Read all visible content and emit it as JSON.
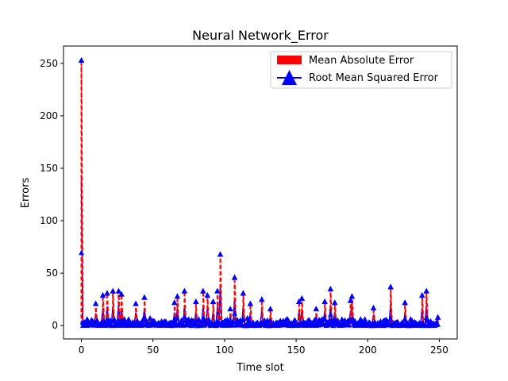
{
  "chart_data": {
    "type": "line",
    "title": "Neural Network_Error",
    "xlabel": "Time slot",
    "ylabel": "Errors",
    "xlim": [
      -12.5,
      262.5
    ],
    "ylim": [
      -12.7,
      266.5
    ],
    "xticks": [
      0,
      50,
      100,
      150,
      200,
      250
    ],
    "yticks": [
      0,
      50,
      100,
      150,
      200,
      250
    ],
    "grid": false,
    "legend_position": "upper-right",
    "series": [
      {
        "name": "Mean Absolute Error",
        "color": "#ff0000",
        "style": "dashed",
        "spikes": [
          [
            0,
            253
          ],
          [
            10,
            21
          ],
          [
            15,
            29
          ],
          [
            18,
            31
          ],
          [
            22,
            33
          ],
          [
            26,
            33
          ],
          [
            28,
            30
          ],
          [
            38,
            21
          ],
          [
            44,
            27
          ],
          [
            65,
            22
          ],
          [
            67,
            28
          ],
          [
            72,
            33
          ],
          [
            80,
            23
          ],
          [
            85,
            33
          ],
          [
            88,
            29
          ],
          [
            92,
            23
          ],
          [
            95,
            33
          ],
          [
            97,
            68
          ],
          [
            104,
            16
          ],
          [
            107,
            46
          ],
          [
            113,
            31
          ],
          [
            118,
            21
          ],
          [
            126,
            25
          ],
          [
            132,
            16
          ],
          [
            152,
            23
          ],
          [
            154,
            26
          ],
          [
            164,
            16
          ],
          [
            170,
            23
          ],
          [
            174,
            35
          ],
          [
            177,
            22
          ],
          [
            188,
            24
          ],
          [
            189,
            28
          ],
          [
            204,
            17
          ],
          [
            216,
            37
          ],
          [
            226,
            22
          ],
          [
            238,
            29
          ],
          [
            241,
            33
          ],
          [
            249,
            8
          ]
        ],
        "base": [
          [
            0,
            0
          ],
          [
            2,
            3
          ],
          [
            4,
            6
          ],
          [
            6,
            2
          ],
          [
            8,
            4
          ],
          [
            12,
            1
          ],
          [
            20,
            5
          ],
          [
            24,
            2
          ],
          [
            30,
            6
          ],
          [
            34,
            3
          ],
          [
            40,
            1
          ],
          [
            48,
            7
          ],
          [
            52,
            2
          ],
          [
            56,
            4
          ],
          [
            60,
            1
          ],
          [
            70,
            5
          ],
          [
            76,
            3
          ],
          [
            82,
            6
          ],
          [
            90,
            2
          ],
          [
            100,
            4
          ],
          [
            110,
            3
          ],
          [
            116,
            7
          ],
          [
            122,
            2
          ],
          [
            130,
            5
          ],
          [
            138,
            3
          ],
          [
            144,
            6
          ],
          [
            148,
            2
          ],
          [
            158,
            4
          ],
          [
            162,
            3
          ],
          [
            168,
            6
          ],
          [
            180,
            2
          ],
          [
            184,
            5
          ],
          [
            194,
            3
          ],
          [
            198,
            6
          ],
          [
            208,
            2
          ],
          [
            212,
            5
          ],
          [
            220,
            3
          ],
          [
            230,
            6
          ],
          [
            234,
            2
          ],
          [
            244,
            4
          ],
          [
            248,
            3
          ]
        ]
      },
      {
        "name": "Root Mean Squared Error",
        "color": "#0000ff",
        "marker": "triangle-up",
        "style": "solid"
      }
    ]
  }
}
